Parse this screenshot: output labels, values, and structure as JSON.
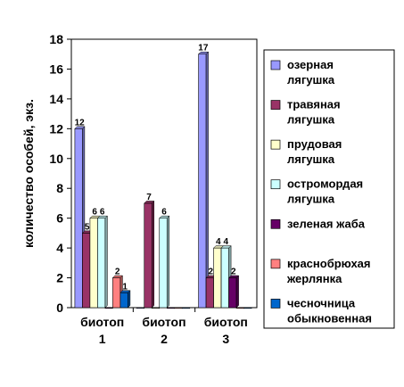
{
  "chart_data": {
    "type": "bar",
    "ylabel": "количество особей, экз.",
    "ylim": [
      0,
      18
    ],
    "yticks": [
      0,
      2,
      4,
      6,
      8,
      10,
      12,
      14,
      16,
      18
    ],
    "grid": false,
    "legend_position": "right",
    "categories": [
      [
        "биотоп",
        "1"
      ],
      [
        "биотоп",
        "2"
      ],
      [
        "биотоп",
        "3"
      ]
    ],
    "series": [
      {
        "name": [
          "озерная",
          "лягушка"
        ],
        "color": "#9999ff",
        "values": [
          12,
          0,
          17
        ],
        "labels": [
          "12",
          "",
          "17"
        ]
      },
      {
        "name": [
          "травяная",
          "лягушка"
        ],
        "color": "#993366",
        "values": [
          5,
          7,
          2
        ],
        "labels": [
          "5",
          "7",
          "2"
        ]
      },
      {
        "name": [
          "прудовая",
          "лягушка"
        ],
        "color": "#ffffcc",
        "values": [
          6,
          0,
          4
        ],
        "labels": [
          "6",
          "",
          "4"
        ]
      },
      {
        "name": [
          "остромордая",
          "лягушка"
        ],
        "color": "#ccffff",
        "values": [
          6,
          6,
          4
        ],
        "labels": [
          "6",
          "6",
          "4"
        ]
      },
      {
        "name": [
          "зеленая жаба"
        ],
        "color": "#660066",
        "values": [
          0,
          0,
          2
        ],
        "labels": [
          "",
          "",
          "2"
        ]
      },
      {
        "name": [
          "краснобрюхая",
          "жерлянка"
        ],
        "color": "#ff8080",
        "values": [
          2,
          0,
          0
        ],
        "labels": [
          "2",
          "",
          ""
        ]
      },
      {
        "name": [
          "чесночница",
          "обыкновенная"
        ],
        "color": "#0066cc",
        "values": [
          1,
          0,
          0
        ],
        "labels": [
          "1",
          "",
          ""
        ]
      }
    ]
  }
}
